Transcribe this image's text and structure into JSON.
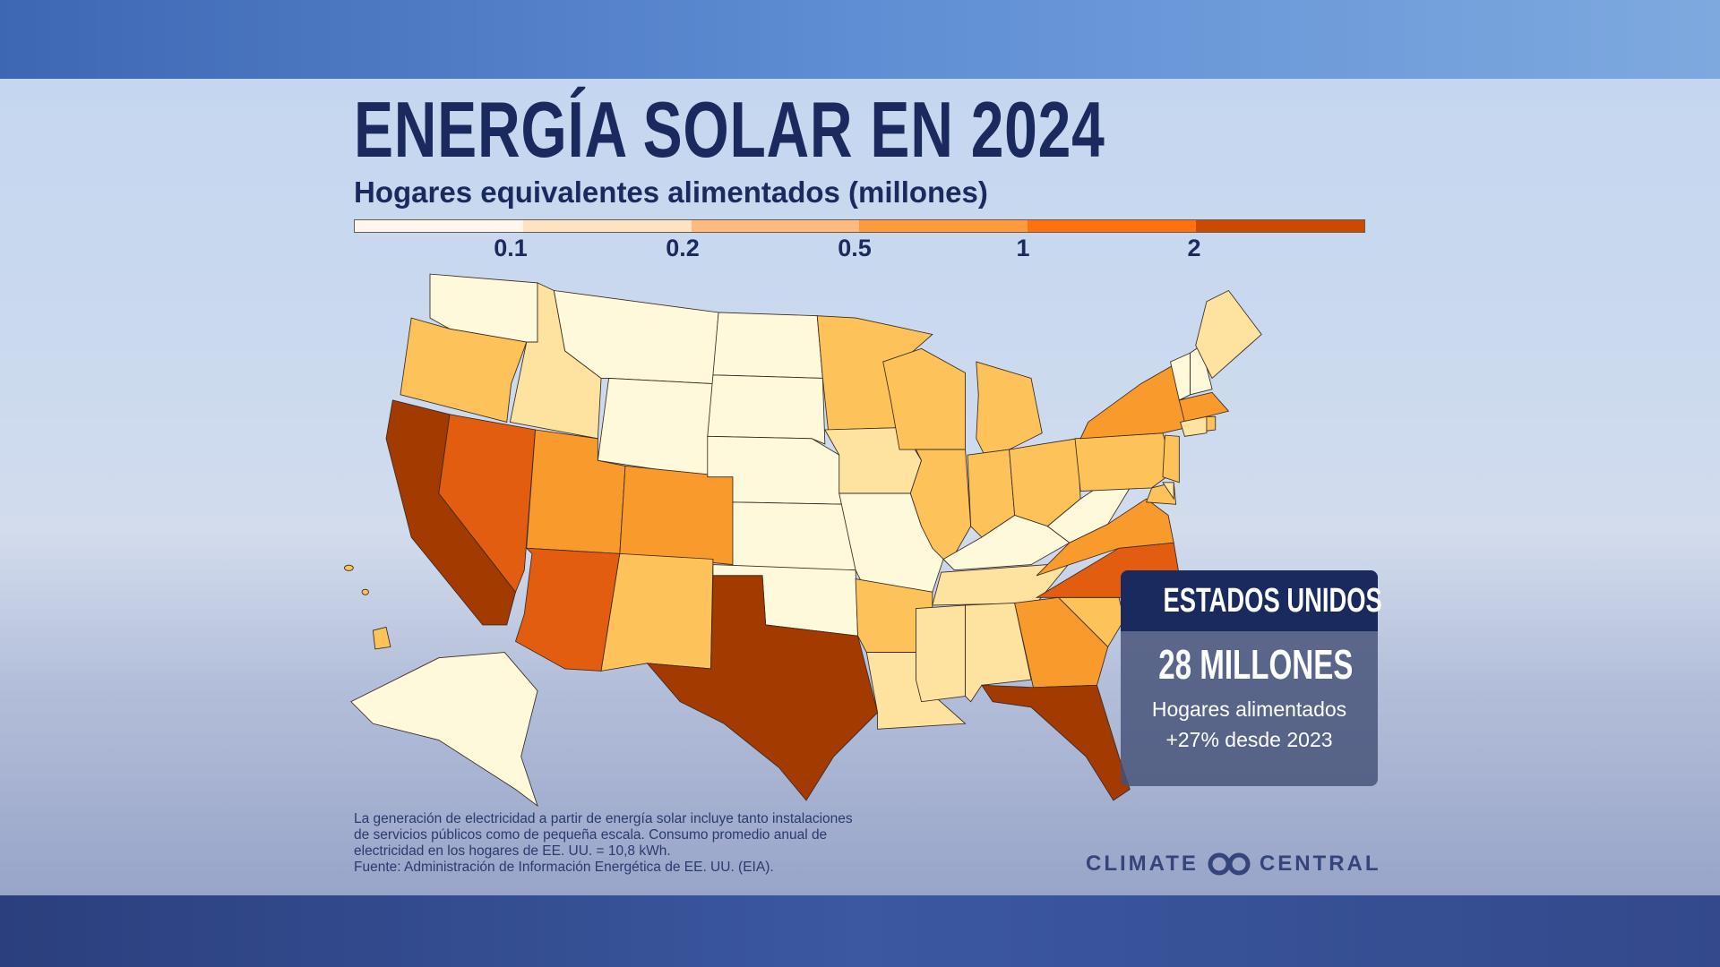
{
  "title": "ENERGÍA SOLAR EN 2024",
  "subtitle": "Hogares equivalentes alimentados (millones)",
  "legend": {
    "ticks": [
      "0.1",
      "0.2",
      "0.5",
      "1",
      "2"
    ],
    "colors": [
      "#fff6ee",
      "#ffe1c4",
      "#ffbb7f",
      "#ff9a3f",
      "#ff7010",
      "#cc4a00"
    ]
  },
  "map_colors": [
    "#fff9dc",
    "#fde2a0",
    "#fdc35a",
    "#f99a2c",
    "#e35d10",
    "#a33a00"
  ],
  "states": {
    "WA": 0,
    "OR": 2,
    "CA": 5,
    "NV": 4,
    "ID": 1,
    "MT": 0,
    "WY": 0,
    "UT": 3,
    "CO": 3,
    "AZ": 4,
    "NM": 2,
    "ND": 0,
    "SD": 0,
    "NE": 0,
    "KS": 0,
    "OK": 0,
    "TX": 5,
    "MN": 2,
    "IA": 1,
    "MO": 0,
    "AR": 2,
    "LA": 1,
    "WI": 2,
    "IL": 2,
    "MI": 2,
    "IN": 2,
    "OH": 2,
    "KY": 0,
    "TN": 1,
    "MS": 1,
    "AL": 1,
    "GA": 3,
    "FL": 5,
    "SC": 2,
    "NC": 4,
    "VA": 3,
    "WV": 0,
    "PA": 2,
    "NY": 3,
    "NJ": 2,
    "MD": 2,
    "DE": 1,
    "VT": 0,
    "NH": 0,
    "ME": 1,
    "MA": 3,
    "CT": 1,
    "RI": 2,
    "AK": 0,
    "HI": 2
  },
  "callout": {
    "header": "ESTADOS UNIDOS",
    "value": "28 MILLONES",
    "line1": "Hogares alimentados",
    "line2": "+27% desde 2023"
  },
  "footnote": [
    "La generación de electricidad a partir de energía solar incluye tanto instalaciones",
    "de servicios públicos como de pequeña escala. Consumo promedio anual de",
    "electricidad en los hogares de EE. UU. = 10,8 kWh.",
    "Fuente: Administración de Información Energética de EE. UU. (EIA)."
  ],
  "logo": {
    "left": "CLIMATE",
    "right": "CENTRAL"
  }
}
